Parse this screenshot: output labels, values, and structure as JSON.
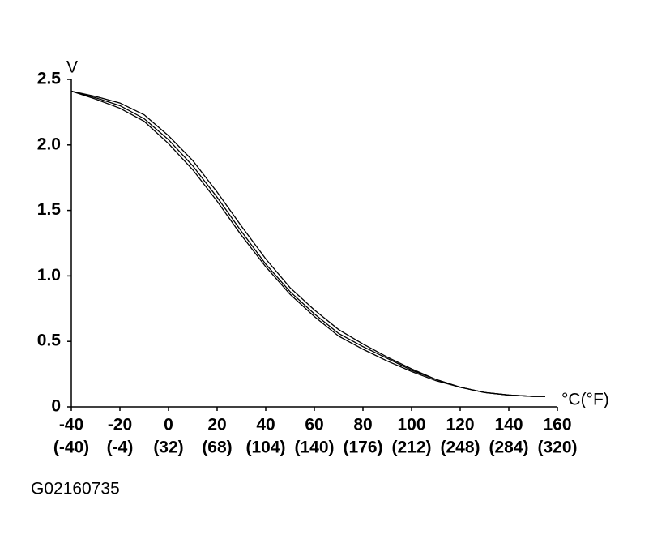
{
  "chart_data": {
    "type": "line",
    "y_label": "V",
    "x_label": "°C(°F)",
    "caption": "G02160735",
    "x": [
      -40,
      -30,
      -20,
      -10,
      0,
      10,
      20,
      30,
      40,
      50,
      60,
      70,
      80,
      90,
      100,
      110,
      120,
      130,
      140,
      150,
      155
    ],
    "series": [
      {
        "color": "#000000",
        "values": [
          2.41,
          2.36,
          2.3,
          2.2,
          2.04,
          1.84,
          1.6,
          1.34,
          1.09,
          0.88,
          0.71,
          0.56,
          0.46,
          0.37,
          0.28,
          0.21,
          0.15,
          0.11,
          0.09,
          0.08,
          0.08
        ]
      },
      {
        "color": "#000000",
        "values": [
          2.41,
          2.37,
          2.32,
          2.23,
          2.07,
          1.88,
          1.64,
          1.38,
          1.13,
          0.91,
          0.74,
          0.59,
          0.48,
          0.38,
          0.29,
          0.21,
          0.15,
          0.11,
          0.09,
          0.08,
          0.08
        ]
      },
      {
        "color": "#000000",
        "values": [
          2.41,
          2.35,
          2.28,
          2.18,
          2.01,
          1.81,
          1.57,
          1.31,
          1.07,
          0.86,
          0.69,
          0.54,
          0.44,
          0.35,
          0.27,
          0.2,
          0.15,
          0.11,
          0.09,
          0.08,
          0.08
        ]
      }
    ],
    "xlim": [
      -40,
      160
    ],
    "xticks": [
      -40,
      -20,
      0,
      20,
      40,
      60,
      80,
      100,
      120,
      140,
      160
    ],
    "xticks_fahrenheit": [
      "(-40)",
      "(-4)",
      "(32)",
      "(68)",
      "(104)",
      "(140)",
      "(176)",
      "(212)",
      "(248)",
      "(284)",
      "(320)"
    ],
    "ylim": [
      0,
      2.5
    ],
    "yticks": [
      0,
      0.5,
      {
        "value": 1,
        "label": "1.0"
      },
      1.5,
      {
        "value": 2,
        "label": "2.0"
      },
      2.5
    ],
    "grid": false
  }
}
